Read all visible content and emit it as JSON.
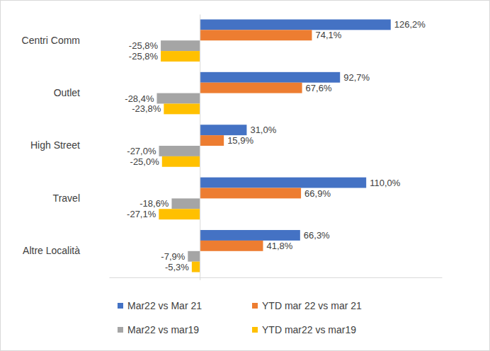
{
  "chart_data": {
    "type": "bar",
    "orientation": "horizontal",
    "categories": [
      "Centri Comm",
      "Outlet",
      "High Street",
      "Travel",
      "Altre Località"
    ],
    "series": [
      {
        "name": "Mar22 vs Mar 21",
        "color": "#4472c4",
        "values": [
          126.2,
          92.7,
          31.0,
          110.0,
          66.3
        ],
        "value_labels": [
          "126,2%",
          "92,7%",
          "31,0%",
          "110,0%",
          "66,3%"
        ]
      },
      {
        "name": "YTD mar 22 vs mar 21",
        "color": "#ed7d31",
        "values": [
          74.1,
          67.6,
          15.9,
          66.9,
          41.8
        ],
        "value_labels": [
          "74,1%",
          "67,6%",
          "15,9%",
          "66,9%",
          "41,8%"
        ]
      },
      {
        "name": "Mar22 vs mar19",
        "color": "#a5a5a5",
        "values": [
          -25.8,
          -28.4,
          -27.0,
          -18.6,
          -7.9
        ],
        "value_labels": [
          "-25,8%",
          "-28,4%",
          "-27,0%",
          "-18,6%",
          "-7,9%"
        ]
      },
      {
        "name": "YTD mar22 vs mar19",
        "color": "#ffc000",
        "values": [
          -25.8,
          -23.8,
          -25.0,
          -27.1,
          -5.3
        ],
        "value_labels": [
          "-25,8%",
          "-23,8%",
          "-25,0%",
          "-27,1%",
          "-5,3%"
        ]
      }
    ],
    "xlim": [
      -60,
      160
    ],
    "xticks": [
      0
    ],
    "tick_labels": "y",
    "data_labels": true,
    "grid": false,
    "legend": "bottom"
  }
}
